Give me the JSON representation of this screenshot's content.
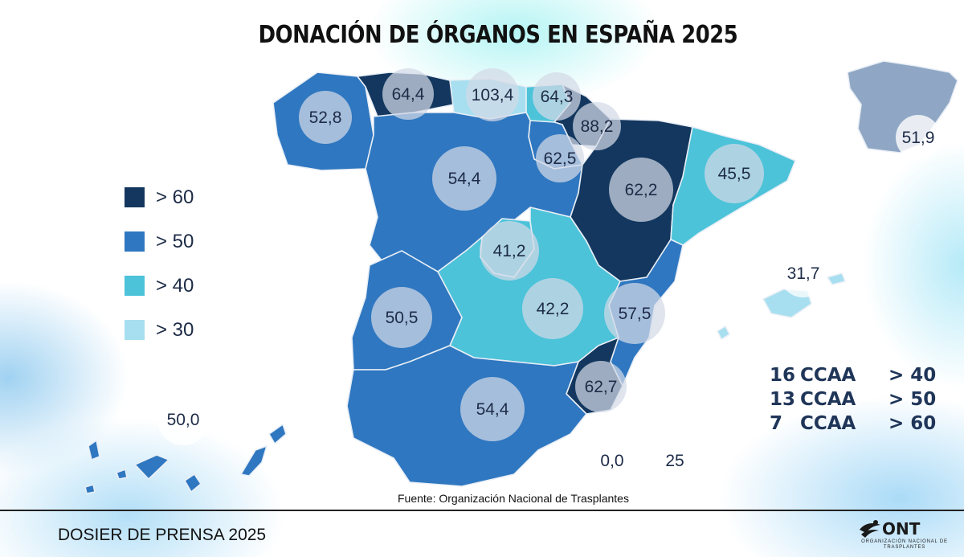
{
  "title": "DONACIÓN DE ÓRGANOS EN ESPAÑA 2025",
  "colors": {
    "gt60": "#13375e",
    "gt50": "#2f77c0",
    "gt40": "#4cc3d9",
    "gt30": "#a7dff0",
    "inset": "#8fa7c4"
  },
  "legend": [
    {
      "label": "> 60",
      "color": "#13375e"
    },
    {
      "label": "> 50",
      "color": "#2f77c0"
    },
    {
      "label": "> 40",
      "color": "#4cc3d9"
    },
    {
      "label": "> 30",
      "color": "#a7dff0"
    }
  ],
  "regions": {
    "galicia": "52,8",
    "asturias": "64,4",
    "cantabria": "103,4",
    "pais_vasco": "64,3",
    "navarra": "88,2",
    "la_rioja": "62,5",
    "castilla_leon": "54,4",
    "aragon": "62,2",
    "cataluna": "45,5",
    "madrid": "41,2",
    "castilla_la_mancha": "42,2",
    "extremadura": "50,5",
    "valencia": "57,5",
    "murcia": "62,7",
    "andalucia": "54,4",
    "baleares": "31,7",
    "canarias": "50,0",
    "ceuta": "0,0",
    "melilla": "25",
    "espana": "51,9"
  },
  "summary": [
    {
      "count": "16",
      "label": "CCAA",
      "threshold": "> 40"
    },
    {
      "count": "13",
      "label": "CCAA",
      "threshold": "> 50"
    },
    {
      "count": "7",
      "label": "CCAA",
      "threshold": "> 60"
    }
  ],
  "source": "Fuente: Organización Nacional de Trasplantes",
  "footer": "DOSIER DE PRENSA 2025",
  "logo": {
    "name": "ONT",
    "subtitle": "ORGANIZACIÓN NACIONAL DE TRASPLANTES",
    "icon": "ont-logo-icon"
  }
}
